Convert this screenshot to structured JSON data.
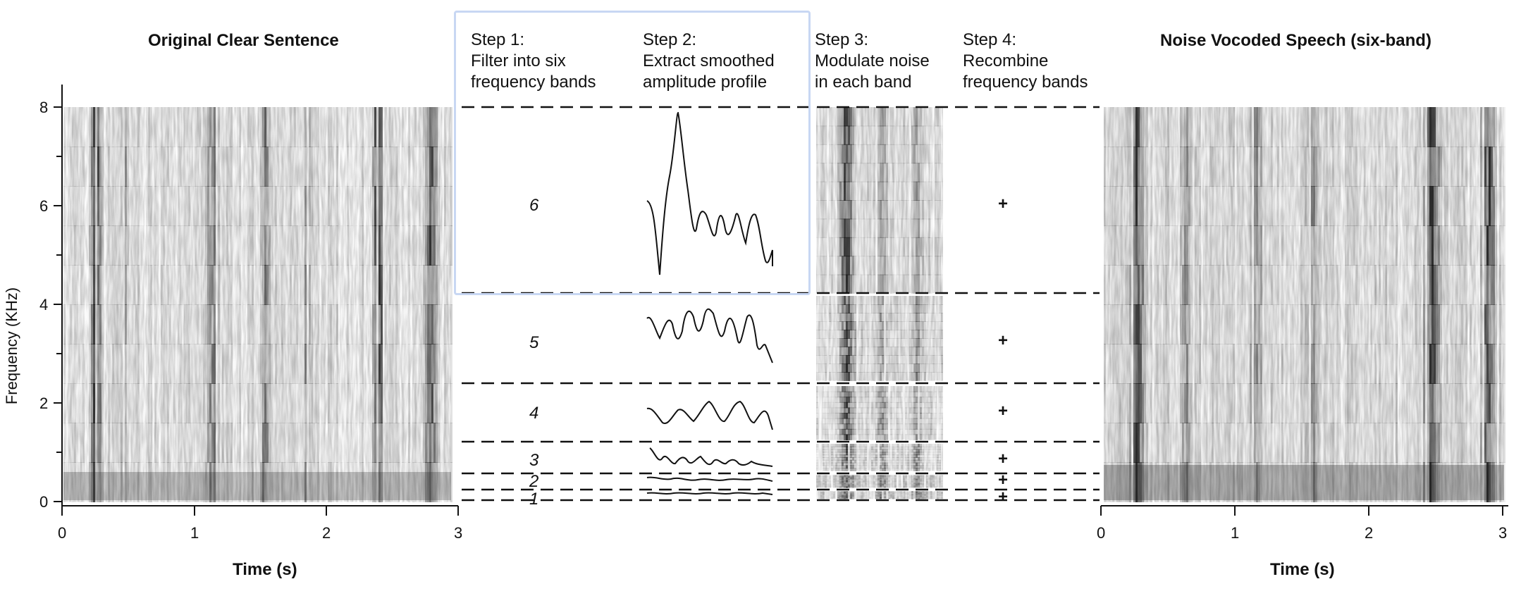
{
  "left_plot": {
    "title": "Original Clear Sentence",
    "xlabel": "Time (s)",
    "ylabel": "Frequency (KHz)",
    "xticks": [
      "0",
      "1",
      "2",
      "3"
    ],
    "yticks": [
      "0",
      "2",
      "4",
      "6",
      "8"
    ]
  },
  "right_plot": {
    "title": "Noise Vocoded Speech (six-band)",
    "xlabel": "Time (s)",
    "xticks": [
      "0",
      "1",
      "2",
      "3"
    ]
  },
  "steps": [
    {
      "label": "Step 1:\nFilter into six\nfrequency bands"
    },
    {
      "label": "Step 2:\nExtract smoothed\namplitude profile"
    },
    {
      "label": "Step 3:\nModulate noise\nin each band"
    },
    {
      "label": "Step 4:\nRecombine\nfrequency bands"
    }
  ],
  "bands": [
    {
      "number": "6",
      "plus": "+"
    },
    {
      "number": "5",
      "plus": "+"
    },
    {
      "number": "4",
      "plus": "+"
    },
    {
      "number": "3",
      "plus": "+"
    },
    {
      "number": "2",
      "plus": "+"
    },
    {
      "number": "1",
      "plus": "+"
    }
  ],
  "colors": {
    "highlight": "#c8d7f3",
    "ink": "#111111",
    "spectrogram": "#1a1a1a"
  }
}
